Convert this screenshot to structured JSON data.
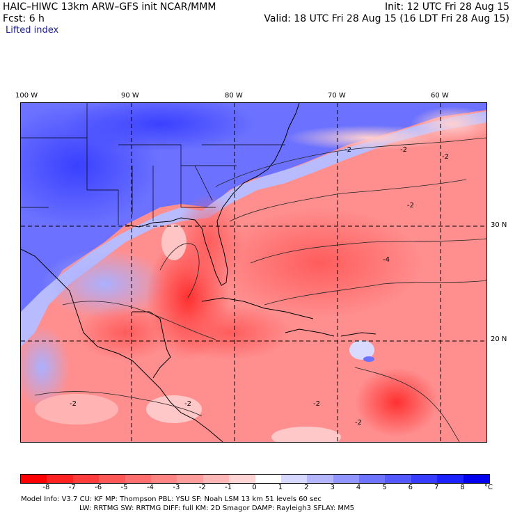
{
  "header": {
    "title": "HAIC–HIWC 13km ARW–GFS init    NCAR/MMM",
    "init": "Init: 12 UTC Fri 28 Aug 15",
    "fcst": "Fcst:     6 h",
    "valid": "Valid: 18 UTC Fri 28 Aug 15 (16 LDT Fri 28 Aug 15)",
    "field": "Lifted index"
  },
  "map": {
    "lon_labels": [
      "100 W",
      "90 W",
      "80 W",
      "70 W",
      "60 W"
    ],
    "lat_labels": [
      "30 N",
      "20 N"
    ],
    "contour_labels": [
      "-2",
      "-2",
      "-2",
      "-2",
      "-4",
      "-2",
      "-2",
      "-2",
      "-2"
    ]
  },
  "legend": {
    "ticks": [
      "-8",
      "-7",
      "-6",
      "-5",
      "-4",
      "-3",
      "-2",
      "-1",
      "0",
      "1",
      "2",
      "3",
      "4",
      "5",
      "6",
      "7",
      "8"
    ],
    "unit": "°C",
    "colors": [
      "#ff0000",
      "#ff2222",
      "#ff3d3d",
      "#ff5656",
      "#ff6e6e",
      "#ff8585",
      "#ff9d9d",
      "#ffb6b6",
      "#ffd4d4",
      "#ffffff",
      "#d6d8ff",
      "#b3b6ff",
      "#9095ff",
      "#6f74ff",
      "#5358ff",
      "#373cff",
      "#1c22ff",
      "#0000ee"
    ]
  },
  "footer": {
    "line1": "Model Info: V3.7      CU: KF        MP: Thompson      PBL: YSU        SF: Noah LSM      13 km    51 levels   60 sec",
    "line2": "LW: RRTMG    SW: RRTMG   DIFF: full    KM: 2D Smagor  DAMP: Rayleigh3   SFLAY: MM5"
  }
}
